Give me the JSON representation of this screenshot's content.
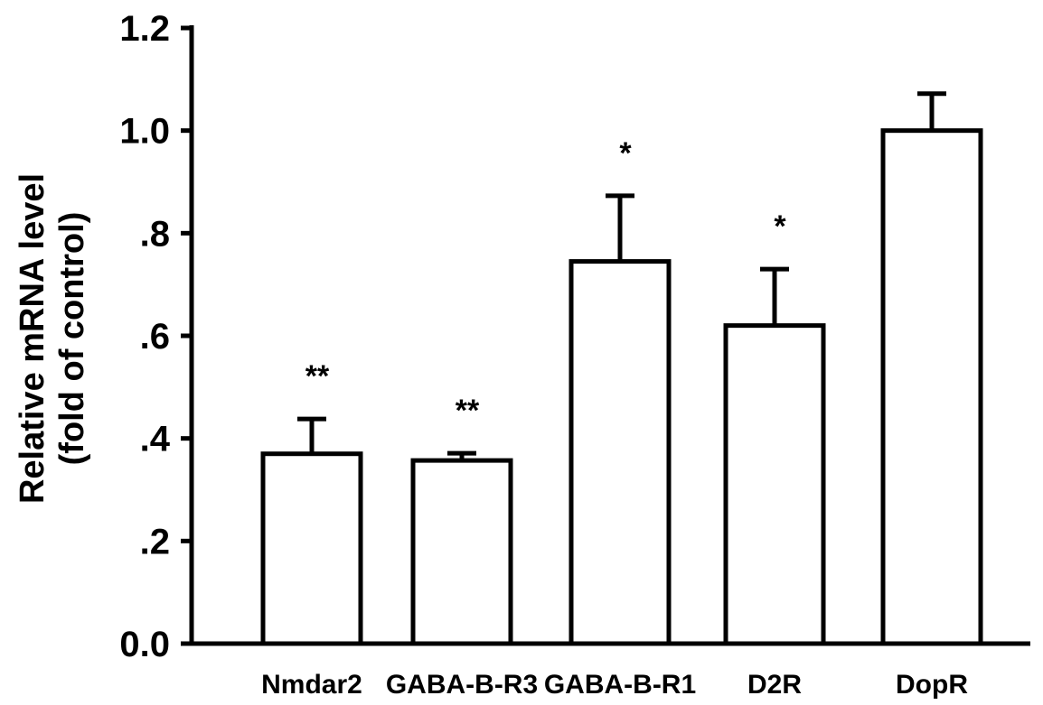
{
  "chart_data": {
    "type": "bar",
    "categories": [
      "Nmdar2",
      "GABA-B-R3",
      "GABA-B-R1",
      "D2R",
      "DopR"
    ],
    "values": [
      0.37,
      0.357,
      0.745,
      0.62,
      1.0
    ],
    "errors": [
      0.068,
      0.014,
      0.128,
      0.11,
      0.072
    ],
    "annotations": [
      "**",
      "**",
      "*",
      "*",
      ""
    ],
    "ylabel_line1": "Relative mRNA level",
    "ylabel_line2": "(fold of control)",
    "xlabel": "",
    "title": "",
    "ylim": [
      0,
      1.2
    ],
    "yticks": [
      0,
      0.2,
      0.4,
      0.6,
      0.8,
      1.0,
      1.2
    ],
    "ytick_labels": [
      "0.0",
      ".2",
      ".4",
      ".6",
      ".8",
      "1.0",
      "1.2"
    ],
    "grid": false,
    "legend": "none",
    "colors": {
      "bar_fill": "#ffffff",
      "bar_stroke": "#000000",
      "axis": "#000000"
    }
  }
}
